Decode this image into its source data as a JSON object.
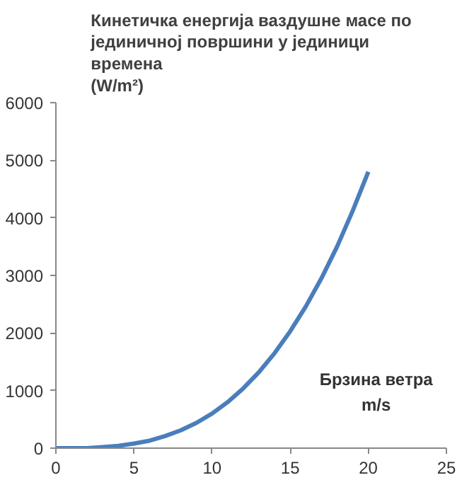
{
  "chart_data": {
    "type": "line",
    "title": "Кинетичка енергија ваздушне масе по јединичној површини у јединици времена (W/m²)",
    "x": [
      0,
      1,
      2,
      3,
      4,
      5,
      6,
      7,
      8,
      9,
      10,
      11,
      12,
      13,
      14,
      15,
      16,
      17,
      18,
      19,
      20
    ],
    "series": [
      {
        "color": "#4a7ebb",
        "values": [
          0,
          0,
          0,
          20,
          40,
          80,
          130,
          210,
          310,
          440,
          600,
          800,
          1040,
          1320,
          1650,
          2030,
          2460,
          2950,
          3500,
          4120,
          4800
        ]
      }
    ],
    "xlim": [
      0,
      25
    ],
    "xticks": [
      0,
      5,
      10,
      15,
      20,
      25
    ],
    "ylim": [
      0,
      6000
    ],
    "yticks": [
      0,
      1000,
      2000,
      3000,
      4000,
      5000,
      6000
    ],
    "annotations": [
      "Брзина ветра m/s"
    ],
    "grid": false,
    "marker": "none",
    "line_style": "solid"
  }
}
